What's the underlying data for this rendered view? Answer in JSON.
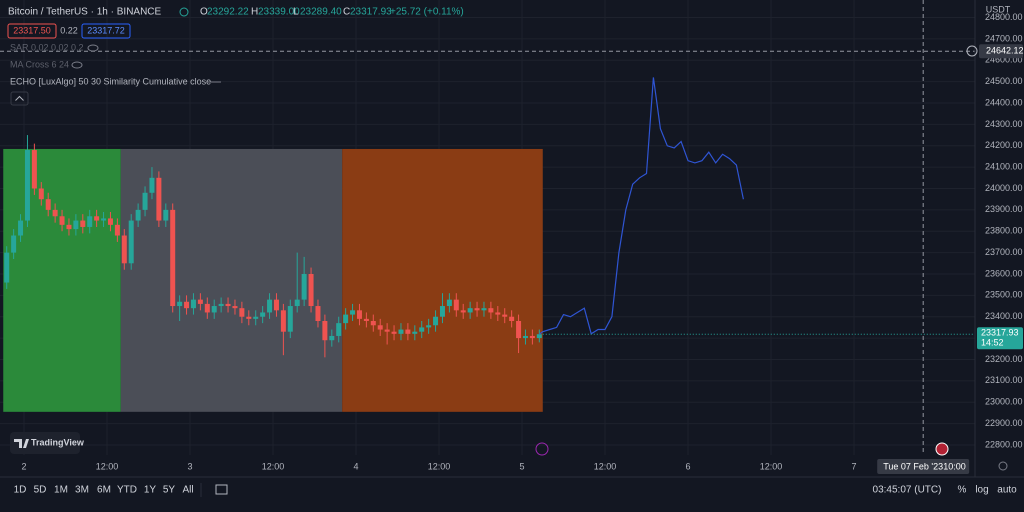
{
  "header": {
    "symbol": "Bitcoin / TetherUS · 1h · BINANCE",
    "ohlc": [
      [
        "O",
        "23292.22"
      ],
      [
        "H",
        "23339.00"
      ],
      [
        "L",
        "23289.40"
      ],
      [
        "C",
        "23317.93"
      ]
    ],
    "change": "+25.72 (+0.11%)",
    "bid": "23317.50",
    "spread": "0.22",
    "ask": "23317.72",
    "indicators": [
      "SAR 0.02 0.02 0.2",
      "MA Cross 6 24"
    ],
    "currency": "USDT"
  },
  "brand": "TradingView",
  "toolbar": {
    "ranges": [
      "1D",
      "5D",
      "1M",
      "3M",
      "6M",
      "YTD",
      "1Y",
      "5Y",
      "All"
    ],
    "clock": "03:45:07 (UTC)",
    "options": [
      "%",
      "log",
      "auto"
    ]
  },
  "chart_data": {
    "type": "candlestick",
    "xlim": [
      -0.47,
      140.49
    ],
    "ylim": [
      22753,
      24882
    ],
    "xticks": [
      {
        "value": 3,
        "label": "2"
      },
      {
        "value": 15,
        "label": "12:00"
      },
      {
        "value": 27,
        "label": "3"
      },
      {
        "value": 39,
        "label": "12:00"
      },
      {
        "value": 51,
        "label": "4"
      },
      {
        "value": 63,
        "label": "12:00"
      },
      {
        "value": 75,
        "label": "5"
      },
      {
        "value": 87,
        "label": "12:00"
      },
      {
        "value": 99,
        "label": "6"
      },
      {
        "value": 111,
        "label": "12:00"
      },
      {
        "value": 123,
        "label": "7"
      }
    ],
    "yticks": [
      {
        "value": 24800,
        "label": "24800.00"
      },
      {
        "value": 24700,
        "label": "24700.00"
      },
      {
        "value": 24600,
        "label": "24600.00"
      },
      {
        "value": 24500,
        "label": "24500.00"
      },
      {
        "value": 24400,
        "label": "24400.00"
      },
      {
        "value": 24300,
        "label": "24300.00"
      },
      {
        "value": 24200,
        "label": "24200.00"
      },
      {
        "value": 24100,
        "label": "24100.00"
      },
      {
        "value": 24000,
        "label": "24000.00"
      },
      {
        "value": 23900,
        "label": "23900.00"
      },
      {
        "value": 23800,
        "label": "23800.00"
      },
      {
        "value": 23700,
        "label": "23700.00"
      },
      {
        "value": 23600,
        "label": "23600.00"
      },
      {
        "value": 23500,
        "label": "23500.00"
      },
      {
        "value": 23400,
        "label": "23400.00"
      },
      {
        "value": 23300,
        "label": "23300.00"
      },
      {
        "value": 23200,
        "label": "23200.00"
      },
      {
        "value": 23100,
        "label": "23100.00"
      },
      {
        "value": 23000,
        "label": "23000.00"
      },
      {
        "value": 22900,
        "label": "22900.00"
      },
      {
        "value": 22800,
        "label": "22800.00"
      }
    ],
    "up_color": "#26a69a",
    "down_color": "#ef5350",
    "candles": {
      "open": [
        23560,
        23700,
        23780,
        23850,
        24180,
        24000,
        23950,
        23900,
        23870,
        23830,
        23810,
        23850,
        23820,
        23870,
        23850,
        23860,
        23830,
        23780,
        23650,
        23850,
        23900,
        23980,
        24050,
        23850,
        23900,
        23450,
        23470,
        23440,
        23480,
        23460,
        23420,
        23450,
        23460,
        23450,
        23440,
        23400,
        23390,
        23400,
        23420,
        23480,
        23430,
        23330,
        23450,
        23480,
        23600,
        23450,
        23380,
        23290,
        23310,
        23370,
        23410,
        23430,
        23390,
        23380,
        23360,
        23340,
        23330,
        23320,
        23340,
        23320,
        23330,
        23350,
        23360,
        23400,
        23450,
        23480,
        23430,
        23420,
        23440,
        23430,
        23440,
        23420,
        23410,
        23400,
        23380,
        23300,
        23310,
        23300
      ],
      "high": [
        23730,
        23810,
        23880,
        24250,
        24210,
        24030,
        23980,
        23930,
        23900,
        23860,
        23880,
        23880,
        23900,
        23900,
        23890,
        23890,
        23860,
        23810,
        23880,
        23930,
        24010,
        24100,
        24080,
        23930,
        23930,
        23500,
        23500,
        23510,
        23510,
        23490,
        23480,
        23490,
        23490,
        23480,
        23470,
        23430,
        23430,
        23450,
        23510,
        23510,
        23460,
        23480,
        23700,
        23680,
        23630,
        23480,
        23410,
        23340,
        23400,
        23440,
        23460,
        23460,
        23420,
        23410,
        23390,
        23370,
        23360,
        23370,
        23370,
        23360,
        23380,
        23390,
        23430,
        23510,
        23510,
        23510,
        23460,
        23470,
        23470,
        23470,
        23470,
        23450,
        23440,
        23430,
        23410,
        23340,
        23340,
        23340
      ],
      "low": [
        23530,
        23670,
        23750,
        23820,
        23970,
        23920,
        23870,
        23840,
        23800,
        23780,
        23780,
        23790,
        23790,
        23820,
        23820,
        23800,
        23750,
        23620,
        23620,
        23820,
        23870,
        23950,
        23820,
        23820,
        23420,
        23380,
        23410,
        23410,
        23430,
        23390,
        23390,
        23420,
        23420,
        23410,
        23370,
        23360,
        23360,
        23370,
        23390,
        23400,
        23220,
        23300,
        23420,
        23450,
        23420,
        23350,
        23210,
        23260,
        23280,
        23340,
        23380,
        23360,
        23350,
        23330,
        23310,
        23270,
        23290,
        23290,
        23290,
        23290,
        23300,
        23320,
        23330,
        23370,
        23420,
        23400,
        23390,
        23390,
        23400,
        23400,
        23390,
        23380,
        23370,
        23350,
        23230,
        23270,
        23270,
        23280
      ],
      "close": [
        23700,
        23780,
        23850,
        24180,
        24000,
        23950,
        23900,
        23870,
        23830,
        23810,
        23850,
        23820,
        23870,
        23850,
        23860,
        23830,
        23780,
        23650,
        23850,
        23900,
        23980,
        24050,
        23850,
        23900,
        23450,
        23470,
        23440,
        23480,
        23460,
        23420,
        23450,
        23460,
        23450,
        23440,
        23400,
        23390,
        23400,
        23420,
        23480,
        23430,
        23330,
        23450,
        23480,
        23600,
        23450,
        23380,
        23290,
        23310,
        23370,
        23410,
        23430,
        23390,
        23380,
        23360,
        23340,
        23330,
        23320,
        23340,
        23320,
        23330,
        23350,
        23360,
        23400,
        23450,
        23480,
        23430,
        23420,
        23440,
        23430,
        23440,
        23420,
        23410,
        23400,
        23380,
        23300,
        23310,
        23300,
        23318
      ]
    },
    "zones": [
      {
        "color": "#2b8a3a",
        "xlim": [
          0,
          17
        ],
        "ylim": [
          22955,
          24185
        ]
      },
      {
        "color": "#4b4e57",
        "xlim": [
          17,
          49
        ],
        "ylim": [
          22955,
          24185
        ]
      },
      {
        "color": "#8a3c14",
        "xlim": [
          49,
          78
        ],
        "ylim": [
          22955,
          24185
        ]
      }
    ],
    "echo": {
      "name": "ECHO [LuxAlgo] 50 30 Similarity Cumulative close",
      "color": "#2f55d4",
      "x": [
        77.5,
        78,
        79,
        80,
        81,
        82,
        83,
        84,
        85,
        86,
        87,
        88,
        89,
        90,
        91,
        92,
        93,
        94,
        95,
        96,
        97,
        98,
        99,
        100,
        101,
        102,
        103,
        104,
        105,
        106,
        107
      ],
      "values": [
        23318,
        23330,
        23340,
        23350,
        23410,
        23400,
        23420,
        23440,
        23320,
        23340,
        23340,
        23400,
        23700,
        23900,
        24020,
        24050,
        24070,
        24520,
        24280,
        24200,
        24190,
        24220,
        24130,
        24120,
        24130,
        24170,
        24120,
        24160,
        24140,
        24110,
        23950
      ]
    },
    "last_price": 23317.93,
    "countdown": "14:52",
    "crosshair": {
      "x": 133,
      "date": "Tue 07 Feb '23",
      "time": "10:00",
      "y": 24642.12
    }
  }
}
